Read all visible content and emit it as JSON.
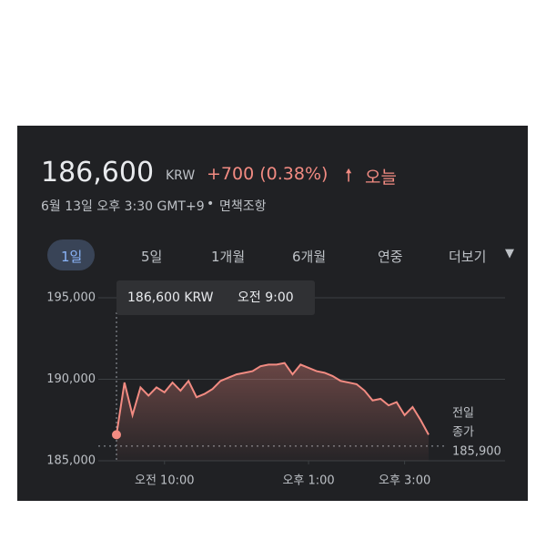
{
  "header": {
    "price": "186,600",
    "currency": "KRW",
    "change": "+700 (0.38%)",
    "period": "오늘",
    "date_line": "6월 13일 오후 3:30 GMT+9",
    "disclaimer": "면책조항"
  },
  "tabs": [
    "1일",
    "5일",
    "1개월",
    "6개월",
    "연중",
    "더보기"
  ],
  "tooltip": {
    "price": "186,600 KRW",
    "time": "오전 9:00"
  },
  "chart_data": {
    "type": "line",
    "x": [
      "09:00",
      "09:10",
      "09:20",
      "09:30",
      "09:40",
      "09:50",
      "10:00",
      "10:10",
      "10:20",
      "10:30",
      "10:40",
      "10:50",
      "11:00",
      "11:10",
      "11:20",
      "11:30",
      "11:40",
      "11:50",
      "12:00",
      "12:10",
      "12:20",
      "12:30",
      "12:40",
      "12:50",
      "13:00",
      "13:10",
      "13:20",
      "13:30",
      "13:40",
      "13:50",
      "14:00",
      "14:10",
      "14:20",
      "14:30",
      "14:40",
      "14:50",
      "15:00",
      "15:10",
      "15:20",
      "15:30"
    ],
    "series": [
      {
        "name": "KRW",
        "color": "#f28b82",
        "values": [
          186600,
          189800,
          187800,
          189500,
          189000,
          189500,
          189200,
          189800,
          189300,
          189900,
          188900,
          189100,
          189400,
          189900,
          190100,
          190300,
          190400,
          190500,
          190800,
          190900,
          190900,
          191000,
          190300,
          190900,
          190700,
          190500,
          190400,
          190200,
          189900,
          189800,
          189700,
          189300,
          188700,
          188800,
          188400,
          188600,
          187800,
          188300,
          187500,
          186600
        ]
      }
    ],
    "xlim": [
      "09:00",
      "15:30"
    ],
    "xticks": [
      {
        "value": "10:00",
        "label": "오전 10:00"
      },
      {
        "value": "13:00",
        "label": "오후 1:00"
      },
      {
        "value": "15:00",
        "label": "오후 3:00"
      }
    ],
    "ylim": [
      185000,
      195000
    ],
    "yticks": [
      {
        "value": 185000,
        "label": "185,000"
      },
      {
        "value": 190000,
        "label": "190,000"
      },
      {
        "value": 195000,
        "label": "195,000"
      }
    ],
    "grid": true,
    "previous_close": {
      "value": 185900,
      "label": "185,900"
    },
    "previous_close_title": [
      "전일",
      "종가"
    ]
  }
}
